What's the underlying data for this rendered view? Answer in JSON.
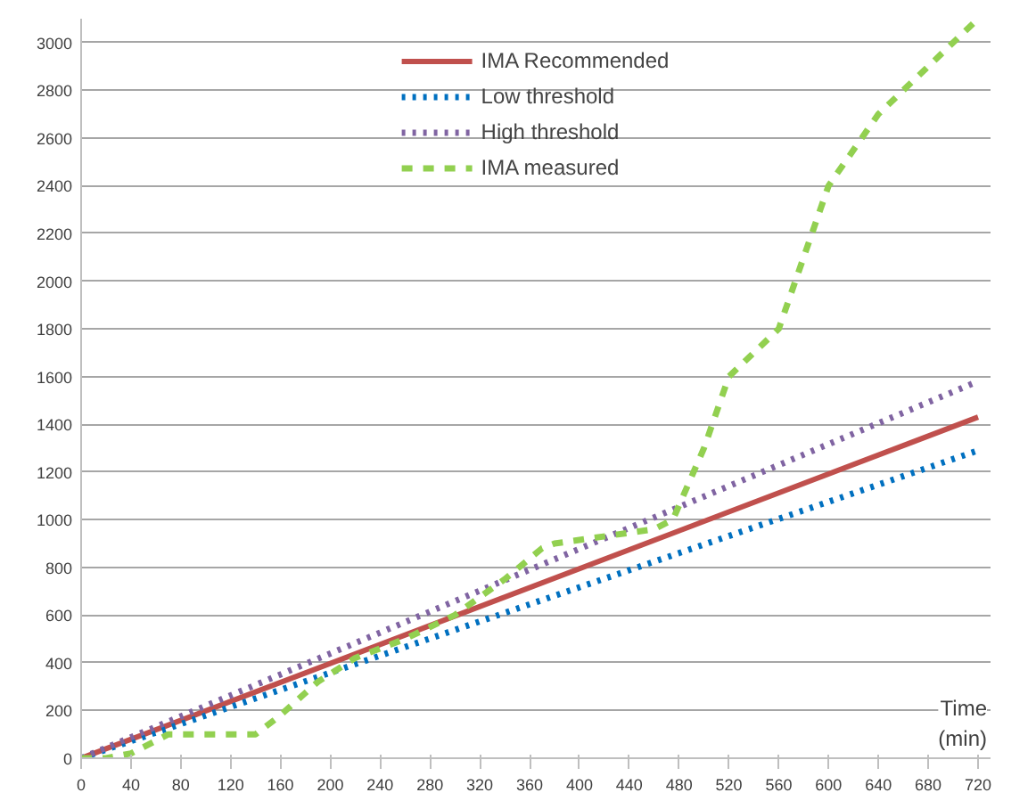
{
  "chart_data": {
    "type": "line",
    "xlabel": "Time\n(min)",
    "xlim": [
      0,
      730
    ],
    "ylim": [
      0,
      3100
    ],
    "xticks": [
      0,
      40,
      80,
      120,
      160,
      200,
      240,
      280,
      320,
      360,
      400,
      440,
      480,
      520,
      560,
      600,
      640,
      680,
      720
    ],
    "yticks": [
      0,
      200,
      400,
      600,
      800,
      1000,
      1200,
      1400,
      1600,
      1800,
      2000,
      2200,
      2400,
      2600,
      2800,
      3000
    ],
    "grid": "y",
    "legend": "top",
    "marker": "none",
    "series": [
      {
        "name": "IMA Recommended",
        "color": "#c0504d",
        "line_style": "solid",
        "x": [
          0,
          720
        ],
        "values": [
          0,
          1430
        ]
      },
      {
        "name": "Low threshold",
        "color": "#0070c0",
        "line_style": "dotted",
        "x": [
          0,
          720
        ],
        "values": [
          0,
          1290
        ]
      },
      {
        "name": "High threshold",
        "color": "#8064a2",
        "line_style": "dotted",
        "x": [
          0,
          720
        ],
        "values": [
          0,
          1580
        ]
      },
      {
        "name": "IMA measured",
        "color": "#92d050",
        "line_style": "dashed",
        "x": [
          0,
          20,
          40,
          70,
          140,
          160,
          190,
          220,
          260,
          300,
          340,
          370,
          380,
          460,
          475,
          500,
          520,
          560,
          580,
          600,
          640,
          720
        ],
        "values": [
          0,
          0,
          20,
          100,
          100,
          180,
          320,
          420,
          500,
          600,
          750,
          880,
          900,
          960,
          1000,
          1300,
          1600,
          1800,
          2100,
          2400,
          2700,
          3100
        ]
      }
    ]
  }
}
